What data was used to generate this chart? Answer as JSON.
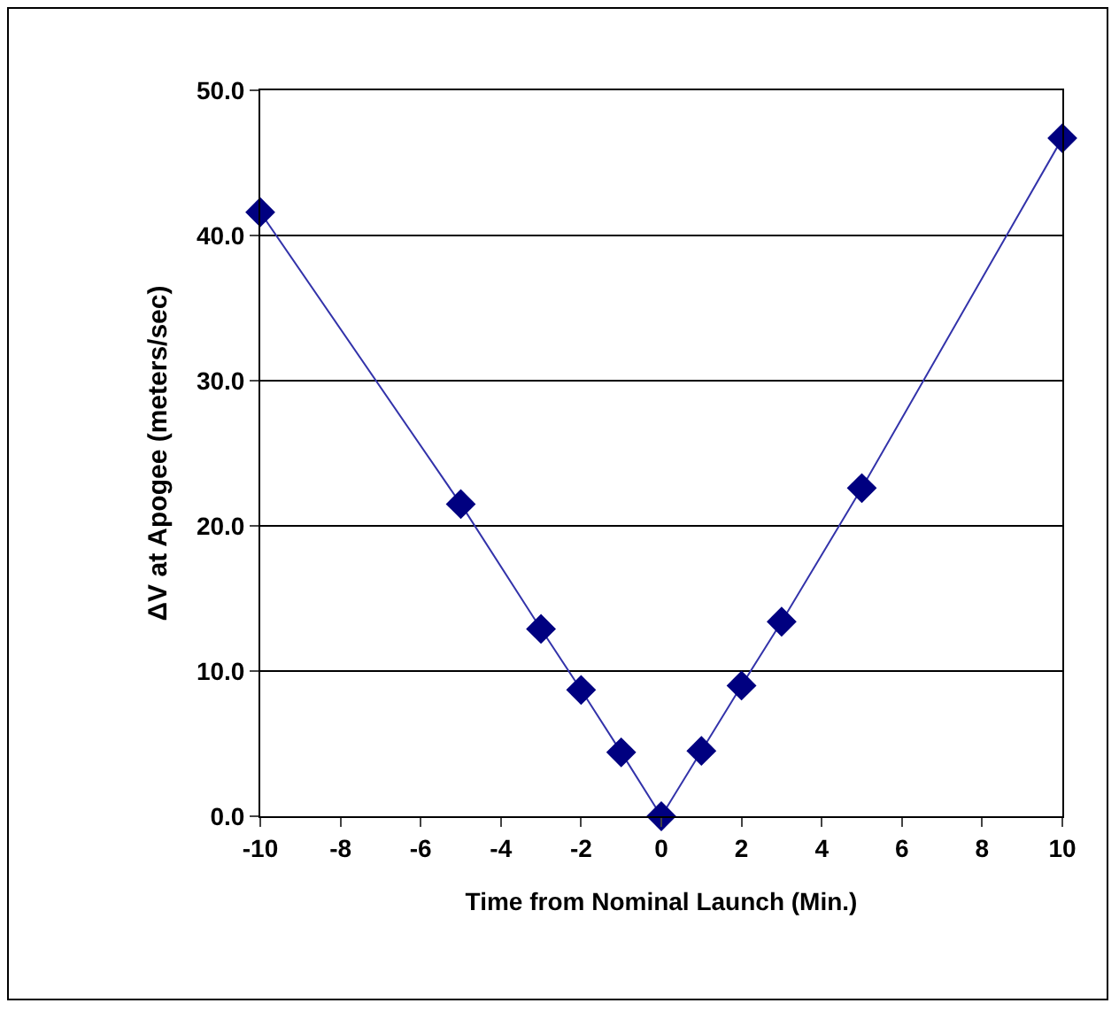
{
  "chart_data": {
    "type": "line",
    "xlabel": "Time from Nominal Launch (Min.)",
    "ylabel": "ΔV at Apogee (meters/sec)",
    "x": [
      -10,
      -5,
      -3,
      -2,
      -1,
      0,
      1,
      2,
      3,
      5,
      10
    ],
    "series": [
      {
        "color": "#000080",
        "values": [
          41.6,
          21.5,
          12.9,
          8.7,
          4.4,
          0,
          4.5,
          9.0,
          13.4,
          22.6,
          46.7
        ]
      }
    ],
    "xlim": [
      -10,
      10
    ],
    "xticks": [
      -10,
      -8,
      -6,
      -4,
      -2,
      0,
      2,
      4,
      6,
      8,
      10
    ],
    "ylim": [
      0,
      50
    ],
    "yticks": [
      {
        "value": 0,
        "label": "0.0"
      },
      {
        "value": 10,
        "label": "10.0"
      },
      {
        "value": 20,
        "label": "20.0"
      },
      {
        "value": 30,
        "label": "30.0"
      },
      {
        "value": 40,
        "label": "40.0"
      },
      {
        "value": 50,
        "label": "50.0"
      }
    ],
    "grid": "y",
    "marker": "diamond",
    "line_style": "solid"
  }
}
